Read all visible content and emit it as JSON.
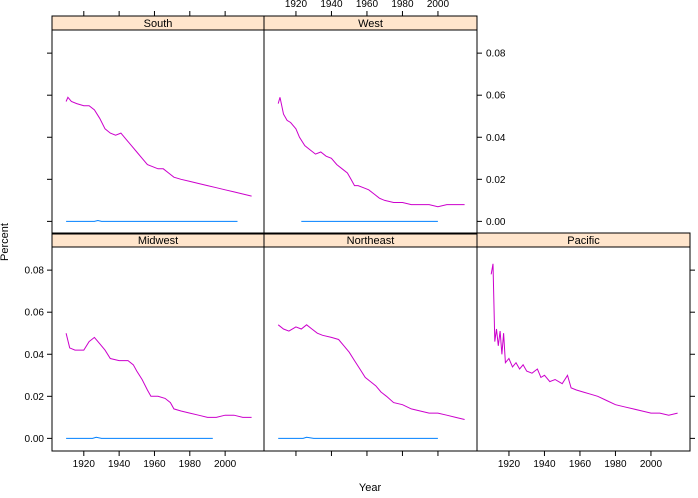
{
  "colors": {
    "strip_bg": "#FFE5CC",
    "frame": "#000000",
    "series_total": "#CC00CC",
    "series_other": "#0080FF"
  },
  "labels": {
    "x_axis": "Year",
    "y_axis": "Percent"
  },
  "chart_data": {
    "type": "line",
    "layout": "trellis 3 columns x 2 rows (bottom-up), shared axes",
    "xlim": [
      1902,
      2022
    ],
    "ylim": [
      -0.006,
      0.091
    ],
    "x_ticks": [
      1920,
      1940,
      1960,
      1980,
      2000
    ],
    "x_tick_labels": [
      "1920",
      "1940",
      "1960",
      "1980",
      "2000"
    ],
    "y_ticks": [
      0.0,
      0.02,
      0.04,
      0.06,
      0.08
    ],
    "y_tick_labels": [
      "0.00",
      "0.02",
      "0.04",
      "0.06",
      "0.08"
    ],
    "xlabel": "Year",
    "ylabel": "Percent",
    "panels": [
      {
        "strip": "Midwest",
        "col": 0,
        "row": 0,
        "series": [
          {
            "color_key": "series_total",
            "points": [
              [
                1910,
                0.05
              ],
              [
                1912,
                0.043
              ],
              [
                1915,
                0.042
              ],
              [
                1920,
                0.042
              ],
              [
                1923,
                0.046
              ],
              [
                1926,
                0.048
              ],
              [
                1929,
                0.045
              ],
              [
                1932,
                0.042
              ],
              [
                1935,
                0.038
              ],
              [
                1940,
                0.037
              ],
              [
                1945,
                0.037
              ],
              [
                1948,
                0.035
              ],
              [
                1950,
                0.032
              ],
              [
                1953,
                0.028
              ],
              [
                1956,
                0.023
              ],
              [
                1958,
                0.02
              ],
              [
                1962,
                0.02
              ],
              [
                1966,
                0.019
              ],
              [
                1969,
                0.017
              ],
              [
                1971,
                0.014
              ],
              [
                1975,
                0.013
              ],
              [
                1980,
                0.012
              ],
              [
                1985,
                0.011
              ],
              [
                1990,
                0.01
              ],
              [
                1995,
                0.01
              ],
              [
                2000,
                0.011
              ],
              [
                2005,
                0.011
              ],
              [
                2010,
                0.01
              ],
              [
                2015,
                0.01
              ]
            ]
          },
          {
            "color_key": "series_other",
            "points": [
              [
                1910,
                0.0
              ],
              [
                1925,
                0.0
              ],
              [
                1927,
                0.0005
              ],
              [
                1930,
                0.0
              ],
              [
                1960,
                0.0
              ],
              [
                1993,
                0.0
              ]
            ]
          }
        ]
      },
      {
        "strip": "Northeast",
        "col": 1,
        "row": 0,
        "series": [
          {
            "color_key": "series_total",
            "points": [
              [
                1910,
                0.054
              ],
              [
                1913,
                0.052
              ],
              [
                1916,
                0.051
              ],
              [
                1920,
                0.053
              ],
              [
                1923,
                0.052
              ],
              [
                1926,
                0.054
              ],
              [
                1929,
                0.052
              ],
              [
                1932,
                0.05
              ],
              [
                1935,
                0.049
              ],
              [
                1940,
                0.048
              ],
              [
                1944,
                0.047
              ],
              [
                1947,
                0.044
              ],
              [
                1950,
                0.041
              ],
              [
                1953,
                0.037
              ],
              [
                1956,
                0.033
              ],
              [
                1959,
                0.029
              ],
              [
                1962,
                0.027
              ],
              [
                1965,
                0.025
              ],
              [
                1968,
                0.022
              ],
              [
                1971,
                0.02
              ],
              [
                1975,
                0.017
              ],
              [
                1980,
                0.016
              ],
              [
                1985,
                0.014
              ],
              [
                1990,
                0.013
              ],
              [
                1995,
                0.012
              ],
              [
                2000,
                0.012
              ],
              [
                2005,
                0.011
              ],
              [
                2010,
                0.01
              ],
              [
                2015,
                0.009
              ]
            ]
          },
          {
            "color_key": "series_other",
            "points": [
              [
                1910,
                0.0
              ],
              [
                1924,
                0.0
              ],
              [
                1926,
                0.0005
              ],
              [
                1930,
                0.0
              ],
              [
                1960,
                0.0
              ],
              [
                2000,
                0.0
              ]
            ]
          }
        ]
      },
      {
        "strip": "Pacific",
        "col": 2,
        "row": 0,
        "series": [
          {
            "color_key": "series_total",
            "points": [
              [
                1910,
                0.078
              ],
              [
                1911,
                0.083
              ],
              [
                1912,
                0.046
              ],
              [
                1913,
                0.052
              ],
              [
                1914,
                0.044
              ],
              [
                1915,
                0.051
              ],
              [
                1916,
                0.04
              ],
              [
                1917,
                0.05
              ],
              [
                1918,
                0.036
              ],
              [
                1920,
                0.038
              ],
              [
                1922,
                0.034
              ],
              [
                1924,
                0.036
              ],
              [
                1926,
                0.033
              ],
              [
                1928,
                0.035
              ],
              [
                1930,
                0.032
              ],
              [
                1933,
                0.031
              ],
              [
                1936,
                0.033
              ],
              [
                1938,
                0.029
              ],
              [
                1940,
                0.03
              ],
              [
                1943,
                0.027
              ],
              [
                1946,
                0.028
              ],
              [
                1950,
                0.026
              ],
              [
                1953,
                0.03
              ],
              [
                1955,
                0.024
              ],
              [
                1958,
                0.023
              ],
              [
                1962,
                0.022
              ],
              [
                1966,
                0.021
              ],
              [
                1970,
                0.02
              ],
              [
                1975,
                0.018
              ],
              [
                1980,
                0.016
              ],
              [
                1985,
                0.015
              ],
              [
                1990,
                0.014
              ],
              [
                1995,
                0.013
              ],
              [
                2000,
                0.012
              ],
              [
                2005,
                0.012
              ],
              [
                2010,
                0.011
              ],
              [
                2015,
                0.012
              ]
            ]
          }
        ]
      },
      {
        "strip": "South",
        "col": 0,
        "row": 1,
        "series": [
          {
            "color_key": "series_total",
            "points": [
              [
                1910,
                0.057
              ],
              [
                1911,
                0.059
              ],
              [
                1913,
                0.057
              ],
              [
                1916,
                0.056
              ],
              [
                1920,
                0.055
              ],
              [
                1923,
                0.055
              ],
              [
                1926,
                0.053
              ],
              [
                1929,
                0.049
              ],
              [
                1932,
                0.044
              ],
              [
                1935,
                0.042
              ],
              [
                1938,
                0.041
              ],
              [
                1941,
                0.042
              ],
              [
                1944,
                0.039
              ],
              [
                1947,
                0.036
              ],
              [
                1950,
                0.033
              ],
              [
                1953,
                0.03
              ],
              [
                1956,
                0.027
              ],
              [
                1959,
                0.026
              ],
              [
                1962,
                0.025
              ],
              [
                1965,
                0.025
              ],
              [
                1968,
                0.023
              ],
              [
                1971,
                0.021
              ],
              [
                1975,
                0.02
              ],
              [
                1980,
                0.019
              ],
              [
                1985,
                0.018
              ],
              [
                1990,
                0.017
              ],
              [
                1995,
                0.016
              ],
              [
                2000,
                0.015
              ],
              [
                2005,
                0.014
              ],
              [
                2010,
                0.013
              ],
              [
                2015,
                0.012
              ]
            ]
          },
          {
            "color_key": "series_other",
            "points": [
              [
                1910,
                0.0
              ],
              [
                1926,
                0.0
              ],
              [
                1928,
                0.0004
              ],
              [
                1930,
                0.0
              ],
              [
                1970,
                0.0
              ],
              [
                2007,
                0.0
              ]
            ]
          }
        ]
      },
      {
        "strip": "West",
        "col": 1,
        "row": 1,
        "series": [
          {
            "color_key": "series_total",
            "points": [
              [
                1910,
                0.056
              ],
              [
                1911,
                0.059
              ],
              [
                1913,
                0.051
              ],
              [
                1915,
                0.048
              ],
              [
                1917,
                0.047
              ],
              [
                1920,
                0.044
              ],
              [
                1922,
                0.04
              ],
              [
                1925,
                0.036
              ],
              [
                1928,
                0.034
              ],
              [
                1931,
                0.032
              ],
              [
                1934,
                0.033
              ],
              [
                1937,
                0.031
              ],
              [
                1940,
                0.03
              ],
              [
                1943,
                0.027
              ],
              [
                1946,
                0.025
              ],
              [
                1949,
                0.023
              ],
              [
                1951,
                0.02
              ],
              [
                1953,
                0.017
              ],
              [
                1955,
                0.017
              ],
              [
                1958,
                0.016
              ],
              [
                1961,
                0.015
              ],
              [
                1964,
                0.013
              ],
              [
                1967,
                0.011
              ],
              [
                1970,
                0.01
              ],
              [
                1975,
                0.009
              ],
              [
                1980,
                0.009
              ],
              [
                1985,
                0.008
              ],
              [
                1990,
                0.008
              ],
              [
                1995,
                0.008
              ],
              [
                2000,
                0.007
              ],
              [
                2005,
                0.008
              ],
              [
                2010,
                0.008
              ],
              [
                2015,
                0.008
              ]
            ]
          },
          {
            "color_key": "series_other",
            "points": [
              [
                1923,
                0.0
              ],
              [
                1960,
                0.0
              ],
              [
                2000,
                0.0
              ]
            ]
          }
        ]
      }
    ]
  }
}
